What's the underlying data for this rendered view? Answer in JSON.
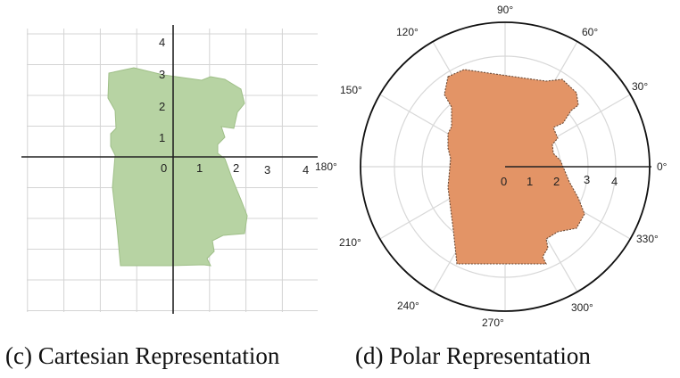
{
  "panels": {
    "cartesian": {
      "caption": "(c) Cartesian Representation",
      "x_ticks": [
        "0",
        "1",
        "2",
        "3",
        "4"
      ],
      "y_ticks": [
        "1",
        "2",
        "3",
        "4"
      ],
      "shape_color": "#b7d3a3",
      "shape_stroke": "#9fbf88"
    },
    "polar": {
      "caption": "(d) Polar Representation",
      "radial_ticks": [
        "0",
        "1",
        "2",
        "3",
        "4"
      ],
      "angle_labels": {
        "a0": "0°",
        "a30": "30°",
        "a60": "60°",
        "a90": "90°",
        "a120": "120°",
        "a150": "150°",
        "a180": "180°",
        "a210": "210°",
        "a240": "240°",
        "a270": "270°",
        "a300": "300°",
        "a330": "330°"
      },
      "shape_color": "#e39466",
      "shape_stroke": "#6a4a36"
    }
  }
}
